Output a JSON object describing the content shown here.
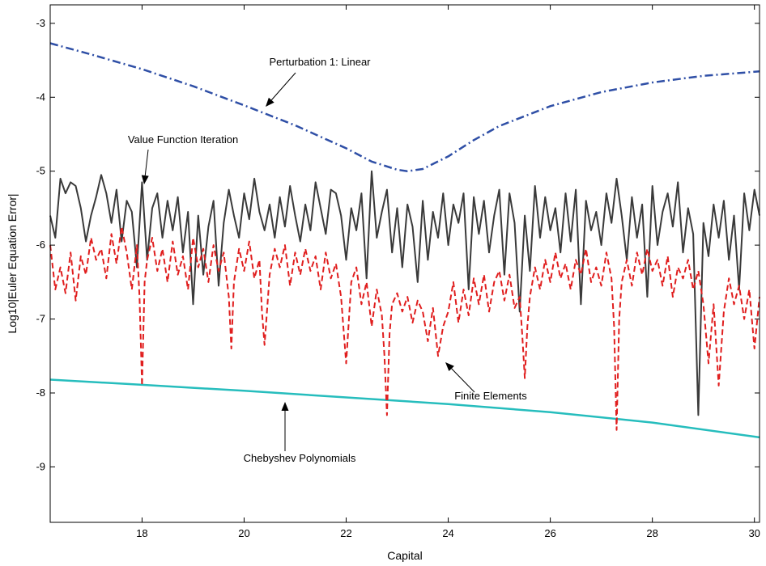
{
  "chart_data": {
    "type": "line",
    "title": "",
    "xlabel": "Capital",
    "ylabel": "Log10|Euler Equation Error|",
    "xlim": [
      16.2,
      30.1
    ],
    "ylim": [
      -9.75,
      -2.75
    ],
    "xticks": [
      18,
      20,
      22,
      24,
      26,
      28,
      30
    ],
    "yticks": [
      -3,
      -4,
      -5,
      -6,
      -7,
      -8,
      -9
    ],
    "grid": false,
    "legend": "none",
    "series": [
      {
        "key": "perturbation",
        "color": "#2f4fa6",
        "style": "dashdot",
        "x": [
          16.2,
          17.0,
          18.0,
          19.0,
          20.0,
          21.0,
          22.0,
          22.5,
          23.0,
          23.2,
          23.5,
          24.0,
          24.5,
          25.0,
          26.0,
          27.0,
          28.0,
          29.0,
          30.1
        ],
        "y": [
          -3.27,
          -3.42,
          -3.62,
          -3.85,
          -4.11,
          -4.38,
          -4.69,
          -4.87,
          -4.98,
          -5.0,
          -4.97,
          -4.8,
          -4.58,
          -4.39,
          -4.12,
          -3.93,
          -3.8,
          -3.71,
          -3.65
        ]
      },
      {
        "key": "chebyshev",
        "color": "#26bdbd",
        "style": "solid",
        "x": [
          16.2,
          18.0,
          20.0,
          22.0,
          24.0,
          26.0,
          28.0,
          30.1
        ],
        "y": [
          -7.82,
          -7.89,
          -7.97,
          -8.06,
          -8.15,
          -8.26,
          -8.4,
          -8.6
        ]
      },
      {
        "key": "vfi",
        "color": "#3a3a3a",
        "style": "solid",
        "x": [
          16.2,
          16.3,
          16.4,
          16.5,
          16.6,
          16.7,
          16.8,
          16.9,
          17.0,
          17.1,
          17.2,
          17.3,
          17.4,
          17.5,
          17.6,
          17.7,
          17.8,
          17.9,
          18.0,
          18.1,
          18.2,
          18.3,
          18.4,
          18.5,
          18.6,
          18.7,
          18.8,
          18.9,
          19.0,
          19.1,
          19.2,
          19.3,
          19.4,
          19.5,
          19.6,
          19.7,
          19.8,
          19.9,
          20.0,
          20.1,
          20.2,
          20.3,
          20.4,
          20.5,
          20.6,
          20.7,
          20.8,
          20.9,
          21.0,
          21.1,
          21.2,
          21.3,
          21.4,
          21.5,
          21.6,
          21.7,
          21.8,
          21.9,
          22.0,
          22.1,
          22.2,
          22.3,
          22.4,
          22.5,
          22.6,
          22.7,
          22.8,
          22.9,
          23.0,
          23.1,
          23.2,
          23.3,
          23.4,
          23.5,
          23.6,
          23.7,
          23.8,
          23.9,
          24.0,
          24.1,
          24.2,
          24.3,
          24.4,
          24.5,
          24.6,
          24.7,
          24.8,
          24.9,
          25.0,
          25.1,
          25.2,
          25.3,
          25.4,
          25.5,
          25.6,
          25.7,
          25.8,
          25.9,
          26.0,
          26.1,
          26.2,
          26.3,
          26.4,
          26.5,
          26.6,
          26.7,
          26.8,
          26.9,
          27.0,
          27.1,
          27.2,
          27.3,
          27.4,
          27.5,
          27.6,
          27.7,
          27.8,
          27.9,
          28.0,
          28.1,
          28.2,
          28.3,
          28.4,
          28.5,
          28.6,
          28.7,
          28.8,
          28.9,
          29.0,
          29.1,
          29.2,
          29.3,
          29.4,
          29.5,
          29.6,
          29.7,
          29.8,
          29.9,
          30.0,
          30.1
        ],
        "y": [
          -5.6,
          -5.9,
          -5.1,
          -5.3,
          -5.15,
          -5.2,
          -5.5,
          -5.95,
          -5.6,
          -5.35,
          -5.05,
          -5.3,
          -5.7,
          -5.25,
          -5.95,
          -5.4,
          -5.55,
          -6.3,
          -5.15,
          -6.2,
          -5.5,
          -5.3,
          -5.9,
          -5.4,
          -5.8,
          -5.35,
          -6.1,
          -5.55,
          -6.8,
          -5.6,
          -6.4,
          -5.75,
          -5.4,
          -6.55,
          -5.7,
          -5.25,
          -5.6,
          -5.9,
          -5.3,
          -5.65,
          -5.1,
          -5.55,
          -5.8,
          -5.45,
          -5.9,
          -5.35,
          -5.75,
          -5.2,
          -5.6,
          -5.95,
          -5.45,
          -5.8,
          -5.15,
          -5.5,
          -5.85,
          -5.25,
          -5.3,
          -5.6,
          -6.2,
          -5.5,
          -5.8,
          -5.3,
          -6.45,
          -5.0,
          -5.9,
          -5.55,
          -5.25,
          -6.1,
          -5.5,
          -6.3,
          -5.45,
          -5.75,
          -6.5,
          -5.4,
          -6.2,
          -5.55,
          -5.9,
          -5.3,
          -6.0,
          -5.45,
          -5.7,
          -5.3,
          -6.6,
          -5.35,
          -5.85,
          -5.4,
          -6.1,
          -5.6,
          -5.25,
          -6.4,
          -5.3,
          -5.7,
          -6.9,
          -5.6,
          -6.35,
          -5.2,
          -5.9,
          -5.35,
          -5.8,
          -5.5,
          -6.1,
          -5.3,
          -5.95,
          -5.25,
          -6.8,
          -5.4,
          -5.8,
          -5.55,
          -6.0,
          -5.3,
          -5.7,
          -5.1,
          -5.6,
          -6.2,
          -5.35,
          -5.9,
          -5.45,
          -6.7,
          -5.2,
          -6.0,
          -5.55,
          -5.3,
          -5.75,
          -5.15,
          -6.1,
          -5.5,
          -5.85,
          -8.3,
          -5.7,
          -6.15,
          -5.45,
          -5.9,
          -5.4,
          -6.2,
          -5.6,
          -6.6,
          -5.3,
          -5.8,
          -5.25,
          -5.6
        ]
      },
      {
        "key": "fe",
        "color": "#e01e1e",
        "style": "dashed",
        "x": [
          16.2,
          16.3,
          16.4,
          16.5,
          16.6,
          16.7,
          16.8,
          16.9,
          17.0,
          17.1,
          17.2,
          17.3,
          17.4,
          17.5,
          17.6,
          17.7,
          17.8,
          17.9,
          17.95,
          18.0,
          18.05,
          18.1,
          18.2,
          18.3,
          18.4,
          18.5,
          18.6,
          18.7,
          18.8,
          18.9,
          19.0,
          19.1,
          19.2,
          19.3,
          19.4,
          19.5,
          19.6,
          19.7,
          19.75,
          19.8,
          19.9,
          20.0,
          20.1,
          20.2,
          20.3,
          20.35,
          20.4,
          20.5,
          20.6,
          20.7,
          20.8,
          20.9,
          21.0,
          21.1,
          21.2,
          21.3,
          21.4,
          21.5,
          21.6,
          21.7,
          21.8,
          21.9,
          22.0,
          22.1,
          22.2,
          22.3,
          22.4,
          22.5,
          22.6,
          22.7,
          22.75,
          22.8,
          22.85,
          22.9,
          23.0,
          23.1,
          23.2,
          23.3,
          23.4,
          23.5,
          23.6,
          23.7,
          23.8,
          23.9,
          24.0,
          24.1,
          24.2,
          24.3,
          24.4,
          24.5,
          24.6,
          24.7,
          24.8,
          24.9,
          25.0,
          25.1,
          25.2,
          25.3,
          25.4,
          25.45,
          25.5,
          25.55,
          25.6,
          25.7,
          25.8,
          25.9,
          26.0,
          26.1,
          26.2,
          26.3,
          26.4,
          26.5,
          26.6,
          26.7,
          26.8,
          26.9,
          27.0,
          27.1,
          27.2,
          27.25,
          27.3,
          27.35,
          27.4,
          27.5,
          27.6,
          27.7,
          27.8,
          27.9,
          28.0,
          28.1,
          28.2,
          28.3,
          28.4,
          28.5,
          28.6,
          28.7,
          28.8,
          28.9,
          29.0,
          29.1,
          29.2,
          29.3,
          29.4,
          29.5,
          29.6,
          29.7,
          29.8,
          29.9,
          30.0,
          30.1
        ],
        "y": [
          -6.0,
          -6.6,
          -6.3,
          -6.65,
          -6.1,
          -6.75,
          -6.15,
          -6.4,
          -5.9,
          -6.2,
          -6.05,
          -6.45,
          -5.85,
          -6.25,
          -5.75,
          -6.1,
          -6.6,
          -6.0,
          -6.7,
          -7.9,
          -6.5,
          -6.2,
          -5.9,
          -6.35,
          -6.05,
          -6.5,
          -5.95,
          -6.4,
          -6.15,
          -6.6,
          -5.9,
          -6.3,
          -6.05,
          -6.5,
          -6.0,
          -6.35,
          -6.1,
          -6.7,
          -7.4,
          -6.5,
          -6.05,
          -6.35,
          -5.95,
          -6.45,
          -6.2,
          -6.9,
          -7.35,
          -6.4,
          -6.05,
          -6.3,
          -6.0,
          -6.55,
          -6.1,
          -6.4,
          -6.05,
          -6.35,
          -6.15,
          -6.6,
          -6.1,
          -6.45,
          -6.25,
          -6.7,
          -7.6,
          -6.5,
          -6.3,
          -6.8,
          -6.5,
          -7.1,
          -6.6,
          -6.95,
          -7.5,
          -8.3,
          -7.2,
          -6.8,
          -6.65,
          -6.9,
          -6.7,
          -7.05,
          -6.75,
          -6.9,
          -7.3,
          -6.85,
          -7.5,
          -7.1,
          -6.9,
          -6.5,
          -7.05,
          -6.6,
          -6.95,
          -6.45,
          -6.8,
          -6.4,
          -6.9,
          -6.5,
          -6.35,
          -6.75,
          -6.4,
          -6.85,
          -6.7,
          -7.2,
          -7.8,
          -7.1,
          -6.7,
          -6.3,
          -6.6,
          -6.2,
          -6.5,
          -6.1,
          -6.45,
          -6.25,
          -6.6,
          -6.2,
          -6.4,
          -6.05,
          -6.5,
          -6.3,
          -6.55,
          -6.1,
          -6.45,
          -7.1,
          -8.5,
          -7.0,
          -6.5,
          -6.2,
          -6.55,
          -6.1,
          -6.4,
          -6.05,
          -6.35,
          -6.2,
          -6.55,
          -6.15,
          -6.7,
          -6.3,
          -6.45,
          -6.2,
          -6.6,
          -6.35,
          -6.8,
          -7.6,
          -6.8,
          -7.9,
          -6.9,
          -6.45,
          -6.8,
          -6.55,
          -7.0,
          -6.6,
          -7.4,
          -6.7
        ]
      }
    ],
    "annotations": [
      {
        "key": "perturbation",
        "text": "Perturbation 1: Linear"
      },
      {
        "key": "vfi",
        "text": "Value Function Iteration"
      },
      {
        "key": "fe",
        "text": "Finite Elements"
      },
      {
        "key": "chebyshev",
        "text": "Chebyshev Polynomials"
      }
    ]
  }
}
